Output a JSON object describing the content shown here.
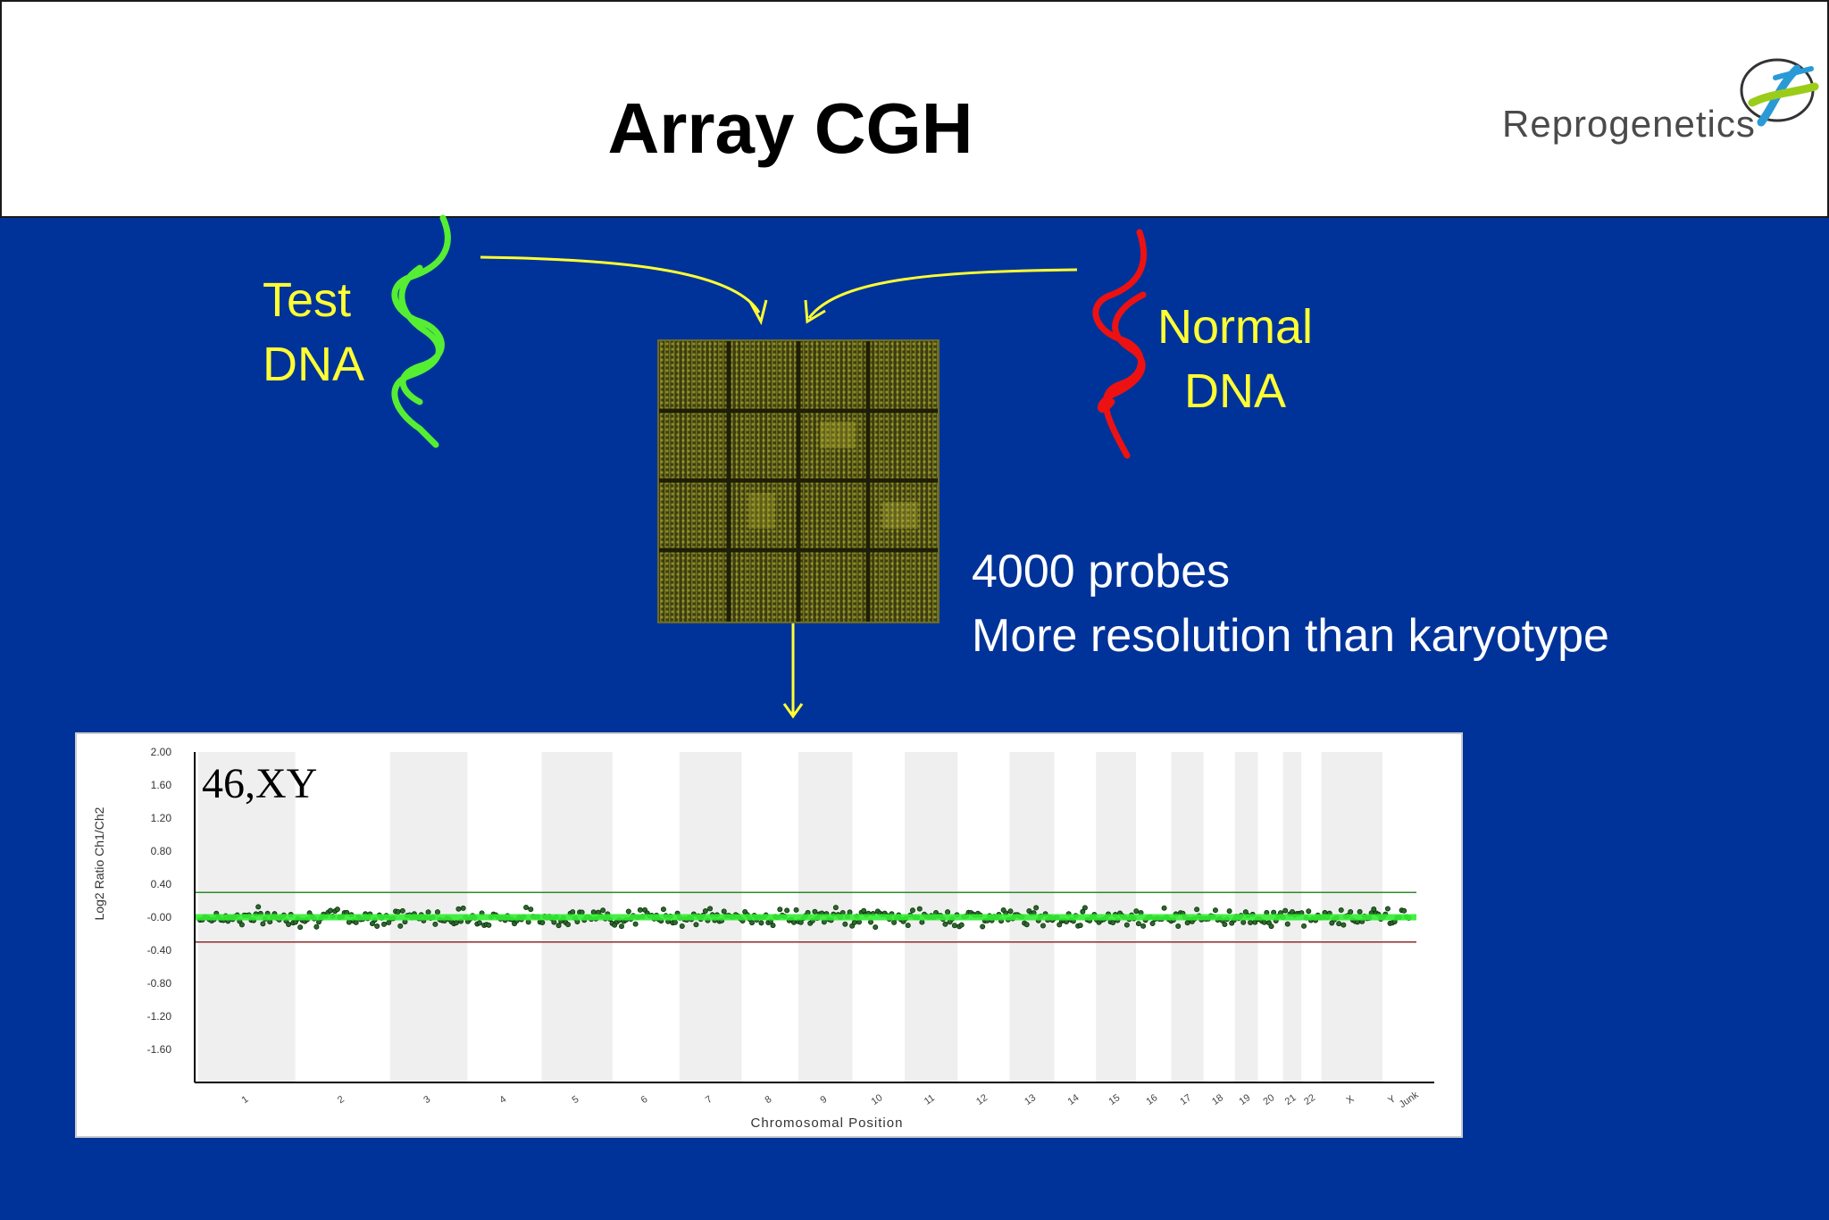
{
  "slide": {
    "title": "Array CGH"
  },
  "logo": {
    "text": "Reprogenetics",
    "mark_icon": "dna-helix-icon"
  },
  "test_dna": {
    "line1": "Test",
    "line2": "DNA",
    "color": "#55ee33"
  },
  "normal_dna": {
    "line1": "Normal",
    "line2": "DNA",
    "color": "#ee1111"
  },
  "info": {
    "line1": "4000 probes",
    "line2": "More resolution than karyotype"
  },
  "colors": {
    "background": "#003399",
    "label_yellow": "#ffff33"
  },
  "chart_data": {
    "type": "scatter",
    "title": "",
    "annotation": "46,XY",
    "xlabel": "Chromosomal Position",
    "ylabel": "Log2 Ratio Ch1/Ch2",
    "ylim": [
      -2.0,
      2.0
    ],
    "yticks": [
      "2.00",
      "1.60",
      "1.20",
      "0.80",
      "0.40",
      "-0.00",
      "-0.40",
      "-0.80",
      "-1.20",
      "-1.60"
    ],
    "categories": [
      "1",
      "2",
      "3",
      "4",
      "5",
      "6",
      "7",
      "8",
      "9",
      "10",
      "11",
      "12",
      "13",
      "14",
      "15",
      "16",
      "17",
      "18",
      "19",
      "20",
      "21",
      "22",
      "X",
      "Y",
      "Junk"
    ],
    "thresholds": [
      0.3,
      -0.3
    ],
    "mean_value": 0.0,
    "series": [
      {
        "values_range": [
          -0.15,
          0.15
        ],
        "approx_points": 4000
      }
    ],
    "grid": false
  }
}
